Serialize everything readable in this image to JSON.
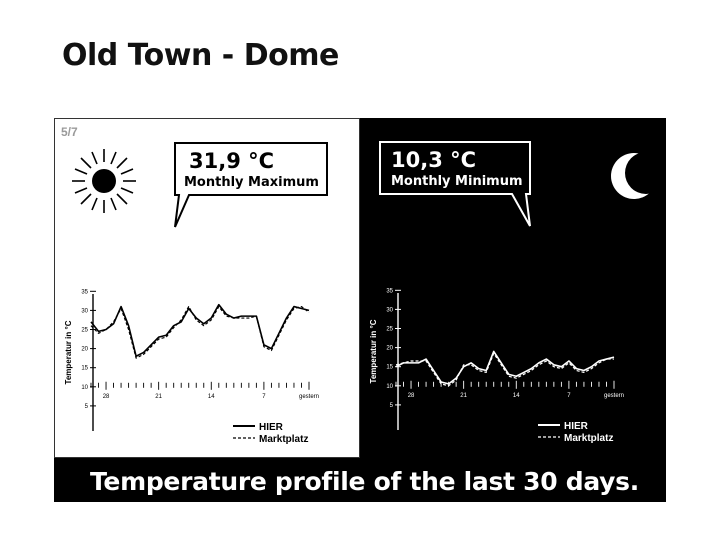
{
  "page": {
    "title": "Old Town - Dome"
  },
  "slide": {
    "page_number": "5/7",
    "caption": "Temperature profile of the last 30 days."
  },
  "panels": {
    "day": {
      "value": "31,9 °C",
      "label": "Monthly Maximum",
      "icon": "sun-icon",
      "background": "#ffffff",
      "foreground": "#000000"
    },
    "night": {
      "value": "10,3 °C",
      "label": "Monthly Minimum",
      "icon": "moon-icon",
      "background": "#000000",
      "foreground": "#ffffff"
    }
  },
  "chart_data": [
    {
      "type": "line",
      "title": "",
      "ylabel": "Temperatur in °C",
      "xlabel": "",
      "ylim": [
        0,
        37
      ],
      "y_ticks": [
        5,
        10,
        15,
        20,
        25,
        30,
        35
      ],
      "x_ticks": [
        28,
        21,
        14,
        7,
        "gestern"
      ],
      "x": [
        30,
        29,
        28,
        27,
        26,
        25,
        24,
        23,
        22,
        21,
        20,
        19,
        18,
        17,
        16,
        15,
        14,
        13,
        12,
        11,
        10,
        9,
        8,
        7,
        6,
        5,
        4,
        3,
        2,
        1
      ],
      "legend_position": "bottom-right",
      "series": [
        {
          "name": "HIER",
          "style": "solid",
          "values": [
            27,
            24.5,
            25,
            26.5,
            31,
            26,
            18,
            19,
            21,
            23,
            23.5,
            26,
            27,
            30.5,
            28,
            26.5,
            28,
            31.5,
            29,
            28,
            28.5,
            28.5,
            28.5,
            21,
            20,
            24,
            28,
            31,
            30.5,
            30
          ]
        },
        {
          "name": "Marktplatz",
          "style": "dashed",
          "values": [
            26,
            24,
            25,
            27,
            30.5,
            25,
            17.5,
            18.5,
            20.5,
            22.5,
            23,
            25.5,
            27.5,
            31,
            27.5,
            26,
            27.5,
            31,
            28.5,
            28,
            28,
            28,
            28.5,
            20.5,
            19.5,
            23.5,
            27.5,
            30.5,
            31,
            29.5
          ]
        }
      ]
    },
    {
      "type": "line",
      "title": "",
      "ylabel": "Temperatur in °C",
      "xlabel": "",
      "ylim": [
        0,
        37
      ],
      "y_ticks": [
        5,
        10,
        15,
        20,
        25,
        30,
        35
      ],
      "x_ticks": [
        28,
        21,
        14,
        7,
        "gestern"
      ],
      "x": [
        30,
        29,
        28,
        27,
        26,
        25,
        24,
        23,
        22,
        21,
        20,
        19,
        18,
        17,
        16,
        15,
        14,
        13,
        12,
        11,
        10,
        9,
        8,
        7,
        6,
        5,
        4,
        3,
        2,
        1
      ],
      "legend_position": "bottom-right",
      "series": [
        {
          "name": "HIER",
          "style": "solid",
          "values": [
            15,
            16,
            16,
            16,
            17,
            14,
            11,
            10.5,
            12,
            15,
            16,
            14.5,
            14,
            19,
            16,
            13,
            12.5,
            13.5,
            14.5,
            16,
            17,
            15.5,
            15,
            16.5,
            14.5,
            14,
            15,
            16.5,
            17,
            17.5
          ]
        },
        {
          "name": "Marktplatz",
          "style": "dashed",
          "values": [
            15.5,
            16,
            16.5,
            16.5,
            16.5,
            13.5,
            10.5,
            10,
            11.5,
            15.5,
            15.5,
            14,
            13.5,
            18.5,
            15.5,
            12.5,
            12,
            13,
            14,
            15.5,
            16.5,
            15,
            14.5,
            16,
            14,
            13.5,
            14.5,
            16,
            17,
            17
          ]
        }
      ]
    }
  ]
}
